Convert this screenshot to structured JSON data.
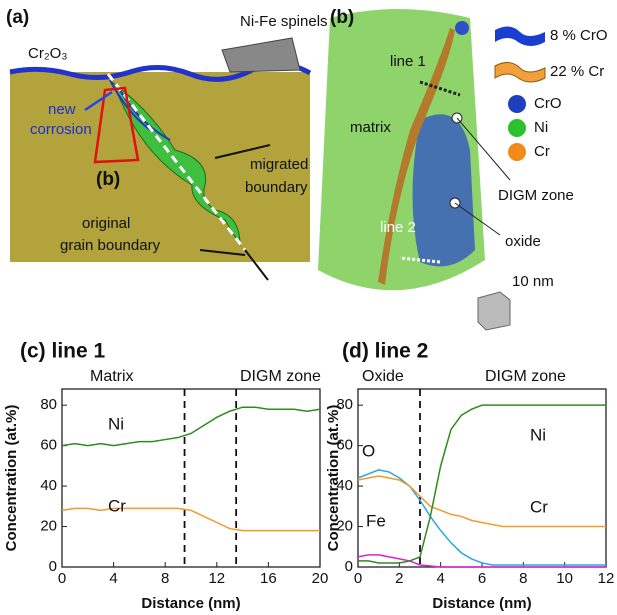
{
  "panels": {
    "a": {
      "label": "(a)",
      "spinels": "Ni-Fe spinels",
      "oxide": "Cr₂O₃",
      "new_corrosion": [
        "new",
        "corrosion"
      ],
      "inset": "(b)",
      "migrated": [
        "migrated",
        "boundary"
      ],
      "original": [
        "original",
        "grain boundary"
      ]
    },
    "b": {
      "label": "(b)",
      "legend": [
        "8 % CrO",
        "22 % Cr",
        "CrO",
        "Ni",
        "Cr"
      ],
      "line1": "line 1",
      "line2": "line 2",
      "matrix": "matrix",
      "digm": "DIGM zone",
      "oxide": "oxide",
      "scale": "10 nm"
    }
  },
  "chart_data": [
    {
      "type": "line",
      "title": "(c) line 1",
      "regions": [
        "Matrix",
        "DIGM zone"
      ],
      "vlines": [
        9.5,
        13.5
      ],
      "x_label": "Distance (nm)",
      "y_label": "Concentration (at.%)",
      "x": [
        0,
        1,
        2,
        3,
        4,
        5,
        6,
        7,
        8,
        9,
        10,
        11,
        12,
        13,
        14,
        15,
        16,
        17,
        18,
        19,
        20
      ],
      "series": [
        {
          "name": "Ni",
          "color": "#2e8b1e",
          "values": [
            60,
            61,
            60,
            61,
            60,
            61,
            62,
            62,
            63,
            64,
            66,
            70,
            74,
            77,
            79,
            79,
            78,
            78,
            78,
            77,
            78
          ]
        },
        {
          "name": "Cr",
          "color": "#f39a2a",
          "values": [
            28,
            29,
            29,
            28,
            29,
            29,
            29,
            29,
            29,
            29,
            28,
            25,
            22,
            19,
            18,
            18,
            18,
            18,
            18,
            18,
            18
          ]
        }
      ],
      "xlim": [
        0,
        20
      ],
      "xticks": [
        0,
        4,
        8,
        12,
        16,
        20
      ],
      "ylim": [
        0,
        88
      ],
      "yticks": [
        0,
        20,
        40,
        60,
        80
      ]
    },
    {
      "type": "line",
      "title": "(d) line 2",
      "regions": [
        "Oxide",
        "DIGM zone"
      ],
      "vlines": [
        3
      ],
      "x_label": "Distance (nm)",
      "y_label": "Concentration (at.%)",
      "x": [
        0,
        0.5,
        1,
        1.5,
        2,
        2.5,
        3,
        3.5,
        4,
        4.5,
        5,
        5.5,
        6,
        6.5,
        7,
        7.5,
        8,
        8.5,
        9,
        9.5,
        10,
        10.5,
        11,
        11.5,
        12
      ],
      "series": [
        {
          "name": "O",
          "color": "#2aa7e0",
          "values": [
            44,
            46,
            48,
            47,
            44,
            40,
            33,
            25,
            18,
            12,
            7,
            4,
            2,
            1,
            1,
            1,
            1,
            1,
            1,
            1,
            1,
            1,
            1,
            1,
            1
          ]
        },
        {
          "name": "Fe",
          "color": "#e020d0",
          "values": [
            5,
            6,
            6,
            5,
            4,
            3,
            1,
            0.5,
            0,
            0,
            0,
            0,
            0,
            0,
            0,
            0,
            0,
            0,
            0,
            0,
            0,
            0,
            0,
            0,
            0
          ]
        },
        {
          "name": "Cr",
          "color": "#f39a2a",
          "values": [
            43,
            44,
            45,
            44,
            43,
            40,
            35,
            30,
            28,
            26,
            25,
            23,
            22,
            21,
            20,
            20,
            20,
            20,
            20,
            20,
            20,
            20,
            20,
            20,
            20
          ]
        },
        {
          "name": "Ni",
          "color": "#2e8b1e",
          "values": [
            3,
            3,
            2,
            2,
            2,
            3,
            5,
            25,
            50,
            68,
            75,
            78,
            80,
            80,
            80,
            80,
            80,
            80,
            80,
            80,
            80,
            80,
            80,
            80,
            80
          ]
        }
      ],
      "xlim": [
        0,
        12
      ],
      "xticks": [
        0,
        2,
        4,
        6,
        8,
        10,
        12
      ],
      "ylim": [
        0,
        88
      ],
      "yticks": [
        0,
        20,
        40,
        60,
        80
      ]
    }
  ]
}
